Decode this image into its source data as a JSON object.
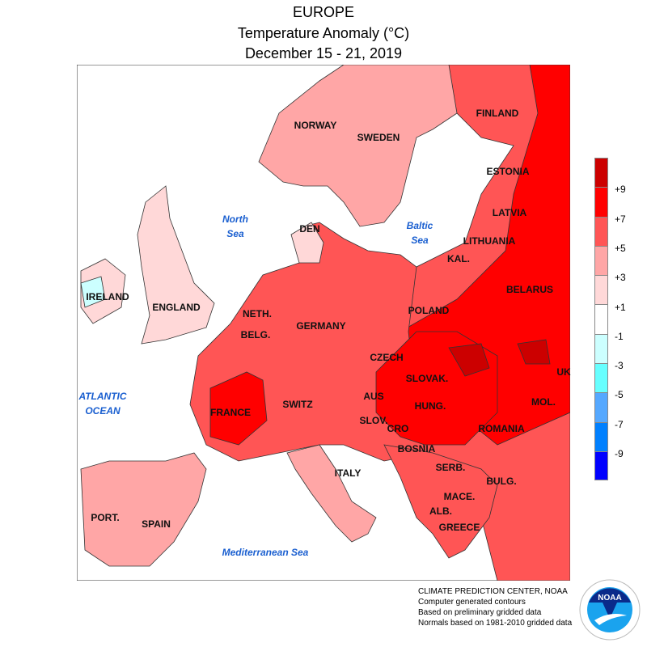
{
  "title": {
    "region": "EUROPE",
    "variable": "Temperature Anomaly (°C)",
    "period": "December 15 - 21, 2019"
  },
  "countries": [
    {
      "name": "NORWAY"
    },
    {
      "name": "SWEDEN"
    },
    {
      "name": "FINLAND"
    },
    {
      "name": "ESTONIA"
    },
    {
      "name": "LATVIA"
    },
    {
      "name": "LITHUANIA"
    },
    {
      "name": "KAL."
    },
    {
      "name": "BELARUS"
    },
    {
      "name": "UK"
    },
    {
      "name": "POLAND"
    },
    {
      "name": "CZECH"
    },
    {
      "name": "SLOVAK."
    },
    {
      "name": "HUNG."
    },
    {
      "name": "MOL."
    },
    {
      "name": "ROMANIA"
    },
    {
      "name": "AUS"
    },
    {
      "name": "SWITZ"
    },
    {
      "name": "SLOV."
    },
    {
      "name": "CRO"
    },
    {
      "name": "BOSNIA"
    },
    {
      "name": "SERB."
    },
    {
      "name": "BULG."
    },
    {
      "name": "MACE."
    },
    {
      "name": "ALB."
    },
    {
      "name": "GREECE"
    },
    {
      "name": "ITALY"
    },
    {
      "name": "FRANCE"
    },
    {
      "name": "GERMANY"
    },
    {
      "name": "BELG."
    },
    {
      "name": "NETH."
    },
    {
      "name": "DEN"
    },
    {
      "name": "ENGLAND"
    },
    {
      "name": "IRELAND"
    },
    {
      "name": "PORT."
    },
    {
      "name": "SPAIN"
    }
  ],
  "seas": [
    {
      "line1": "North",
      "line2": "Sea"
    },
    {
      "line1": "Baltic",
      "line2": "Sea"
    },
    {
      "line1": "ATLANTIC",
      "line2": "OCEAN"
    },
    {
      "line1": "Mediterranean Sea",
      "line2": ""
    }
  ],
  "legend": {
    "colors": [
      "#cc0000",
      "#ff0000",
      "#ff5555",
      "#ffa6a6",
      "#ffd8d8",
      "#ffffff",
      "#ccffff",
      "#66ffff",
      "#55a8ff",
      "#0080ff",
      "#0000ff"
    ],
    "ticks": [
      "+9",
      "+7",
      "+5",
      "+3",
      "+1",
      "-1",
      "-3",
      "-5",
      "-7",
      "-9"
    ]
  },
  "credits": [
    "CLIMATE PREDICTION CENTER, NOAA",
    "Computer generated contours",
    "Based on preliminary gridded data",
    "Normals based on 1981-2010 gridded data"
  ],
  "logo": {
    "text": "NOAA",
    "ring": "NATIONAL OCEANIC AND ATMOSPHERIC ADMINISTRATION · U.S. DEPARTMENT OF COMMERCE"
  }
}
